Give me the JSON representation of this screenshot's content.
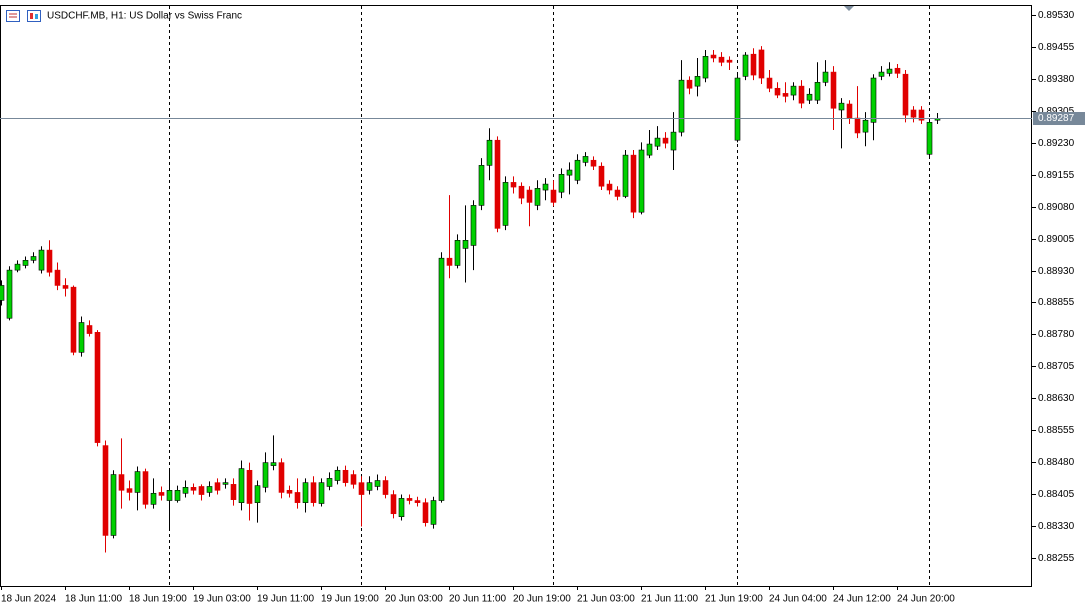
{
  "chart_data": {
    "type": "candlestick",
    "title": "USDCHF.MB, H1:  US Dollar vs Swiss Franc",
    "categories": [
      "18 Jun 2024",
      null,
      null,
      null,
      null,
      null,
      null,
      null,
      "18 Jun 11:00",
      null,
      null,
      null,
      null,
      null,
      null,
      null,
      "18 Jun 19:00",
      null,
      null,
      null,
      null,
      null,
      null,
      null,
      "19 Jun 03:00",
      null,
      null,
      null,
      null,
      null,
      null,
      null,
      "19 Jun 11:00",
      null,
      null,
      null,
      null,
      null,
      null,
      null,
      "19 Jun 19:00",
      null,
      null,
      null,
      null,
      null,
      null,
      null,
      "20 Jun 03:00",
      null,
      null,
      null,
      null,
      null,
      null,
      null,
      "20 Jun 11:00",
      null,
      null,
      null,
      null,
      null,
      null,
      null,
      "20 Jun 19:00",
      null,
      null,
      null,
      null,
      null,
      null,
      null,
      "21 Jun 03:00",
      null,
      null,
      null,
      null,
      null,
      null,
      null,
      "21 Jun 11:00",
      null,
      null,
      null,
      null,
      null,
      null,
      null,
      "21 Jun 19:00",
      null,
      null,
      null,
      null,
      null,
      null,
      null,
      "24 Jun 04:00",
      null,
      null,
      null,
      null,
      null,
      null,
      null,
      "24 Jun 12:00",
      null,
      null,
      null,
      null,
      null,
      null,
      null,
      "24 Jun 20:00",
      null,
      null,
      null,
      null,
      null
    ],
    "open": [
      0.8886,
      0.88818,
      0.88931,
      0.88942,
      0.88954,
      0.88931,
      0.88978,
      0.88931,
      0.88895,
      0.88891,
      0.88738,
      0.88801,
      0.88785,
      0.88519,
      0.88308,
      0.88451,
      0.88418,
      0.88409,
      0.88458,
      0.88381,
      0.88409,
      0.8839,
      0.8839,
      0.88407,
      0.88421,
      0.88423,
      0.88409,
      0.88432,
      0.88428,
      0.88428,
      0.88385,
      0.88461,
      0.88385,
      0.88421,
      0.88472,
      0.88479,
      0.88414,
      0.88409,
      0.88385,
      0.88432,
      0.88383,
      0.88423,
      0.88437,
      0.88461,
      0.88451,
      0.88432,
      0.88414,
      0.88423,
      0.88437,
      0.88404,
      0.88352,
      0.88395,
      0.8839,
      0.88385,
      0.88334,
      0.8839,
      0.88959,
      0.88942,
      0.88982,
      0.88989,
      0.89083,
      0.89177,
      0.89236,
      0.89036,
      0.89137,
      0.89128,
      0.89119,
      0.89083,
      0.89119,
      0.89119,
      0.89114,
      0.89154,
      0.89142,
      0.89184,
      0.89189,
      0.89175,
      0.89133,
      0.89119,
      0.89104,
      0.89201,
      0.89067,
      0.89201,
      0.89222,
      0.89241,
      0.89213,
      0.89255,
      0.89377,
      0.89363,
      0.89382,
      0.89436,
      0.89431,
      0.89424,
      0.89236,
      0.89386,
      0.89438,
      0.89448,
      0.89382,
      0.89358,
      0.89346,
      0.89342,
      0.89363,
      0.8933,
      0.8933,
      0.89372,
      0.89396,
      0.89307,
      0.89321,
      0.89288,
      0.89255,
      0.89278,
      0.89386,
      0.89393,
      0.89405,
      0.89391,
      0.89307,
      0.89307,
      0.89203,
      0.89283
    ],
    "high": [
      0.88907,
      0.8894,
      0.88954,
      0.88963,
      0.88973,
      0.88987,
      0.89001,
      0.88949,
      0.88912,
      0.88895,
      0.88822,
      0.88813,
      0.8879,
      0.88531,
      0.88461,
      0.88536,
      0.88437,
      0.8847,
      0.88465,
      0.88442,
      0.88423,
      0.88461,
      0.88425,
      0.88437,
      0.8843,
      0.88428,
      0.88435,
      0.88442,
      0.88442,
      0.88442,
      0.88484,
      0.88479,
      0.88437,
      0.88503,
      0.88543,
      0.88489,
      0.88425,
      0.88442,
      0.88442,
      0.88447,
      0.88442,
      0.88456,
      0.8847,
      0.88472,
      0.88461,
      0.88447,
      0.88447,
      0.88451,
      0.88447,
      0.88414,
      0.88404,
      0.88404,
      0.88399,
      0.88395,
      0.88399,
      0.88973,
      0.89107,
      0.89015,
      0.89083,
      0.89095,
      0.89194,
      0.89264,
      0.89245,
      0.89151,
      0.89151,
      0.89137,
      0.89128,
      0.89142,
      0.89147,
      0.89142,
      0.8917,
      0.89184,
      0.89203,
      0.89208,
      0.89198,
      0.89184,
      0.89142,
      0.89128,
      0.89213,
      0.89213,
      0.89231,
      0.8926,
      0.89269,
      0.89255,
      0.89302,
      0.89424,
      0.89386,
      0.89429,
      0.89448,
      0.89448,
      0.89443,
      0.89433,
      0.89391,
      0.89443,
      0.89452,
      0.89457,
      0.89401,
      0.89372,
      0.89372,
      0.89372,
      0.89377,
      0.89358,
      0.89419,
      0.89424,
      0.8941,
      0.89335,
      0.8933,
      0.89363,
      0.89302,
      0.89391,
      0.8941,
      0.89419,
      0.89415,
      0.89401,
      0.89316,
      0.89316,
      0.89288,
      0.893
    ],
    "low": [
      0.88848,
      0.88813,
      0.88926,
      0.88935,
      0.88947,
      0.88923,
      0.88916,
      0.88884,
      0.88869,
      0.88731,
      0.88728,
      0.88775,
      0.88517,
      0.88268,
      0.88301,
      0.88371,
      0.8839,
      0.88367,
      0.88371,
      0.88371,
      0.8839,
      0.88324,
      0.88385,
      0.88397,
      0.88404,
      0.8839,
      0.88399,
      0.88404,
      0.88418,
      0.88378,
      0.88367,
      0.88343,
      0.88338,
      0.88409,
      0.88461,
      0.88395,
      0.88397,
      0.88371,
      0.88362,
      0.88376,
      0.88376,
      0.88414,
      0.88428,
      0.88423,
      0.88418,
      0.88329,
      0.88404,
      0.88414,
      0.88395,
      0.88348,
      0.88343,
      0.88381,
      0.88376,
      0.88329,
      0.88324,
      0.88385,
      0.88912,
      0.88935,
      0.88902,
      0.88931,
      0.89072,
      0.89142,
      0.8902,
      0.89025,
      0.89111,
      0.89086,
      0.89034,
      0.89072,
      0.89095,
      0.89081,
      0.891,
      0.89109,
      0.89133,
      0.89175,
      0.89166,
      0.89119,
      0.89109,
      0.89095,
      0.891,
      0.89053,
      0.89062,
      0.89194,
      0.89213,
      0.89217,
      0.89166,
      0.89245,
      0.89344,
      0.89339,
      0.89372,
      0.89419,
      0.8941,
      0.89401,
      0.89231,
      0.89377,
      0.89377,
      0.89368,
      0.89349,
      0.89335,
      0.89325,
      0.8933,
      0.89311,
      0.89321,
      0.89321,
      0.89363,
      0.8926,
      0.89217,
      0.89274,
      0.89241,
      0.89222,
      0.89236,
      0.89377,
      0.89386,
      0.89382,
      0.89278,
      0.89278,
      0.89274,
      0.89198,
      0.89274
    ],
    "close": [
      0.88895,
      0.88931,
      0.88945,
      0.88954,
      0.88963,
      0.88978,
      0.88926,
      0.88895,
      0.88888,
      0.88738,
      0.88808,
      0.88782,
      0.88526,
      0.88308,
      0.88451,
      0.88414,
      0.88409,
      0.88458,
      0.88381,
      0.88407,
      0.88402,
      0.88414,
      0.88414,
      0.88421,
      0.88414,
      0.88404,
      0.88423,
      0.88414,
      0.88432,
      0.88392,
      0.88465,
      0.88383,
      0.88425,
      0.88479,
      0.88479,
      0.88409,
      0.88407,
      0.88385,
      0.88432,
      0.88385,
      0.88432,
      0.88442,
      0.88461,
      0.88432,
      0.88428,
      0.88404,
      0.88432,
      0.88437,
      0.88404,
      0.88359,
      0.88395,
      0.8839,
      0.88385,
      0.88338,
      0.8839,
      0.88959,
      0.88942,
      0.89001,
      0.89001,
      0.89083,
      0.89177,
      0.89236,
      0.89029,
      0.89137,
      0.89126,
      0.891,
      0.8909,
      0.89123,
      0.89133,
      0.8909,
      0.89156,
      0.89166,
      0.89189,
      0.89198,
      0.89175,
      0.89128,
      0.89119,
      0.89104,
      0.89201,
      0.89067,
      0.89213,
      0.89227,
      0.89241,
      0.89229,
      0.89255,
      0.89377,
      0.89358,
      0.89386,
      0.89433,
      0.89429,
      0.89419,
      0.89419,
      0.89382,
      0.89436,
      0.89389,
      0.89382,
      0.89358,
      0.89342,
      0.89339,
      0.89363,
      0.89323,
      0.89344,
      0.89372,
      0.89396,
      0.89311,
      0.89323,
      0.89288,
      0.89253,
      0.89283,
      0.89382,
      0.89396,
      0.89403,
      0.89393,
      0.89295,
      0.8929,
      0.89283,
      0.89278,
      0.89287
    ],
    "up_color": "#00d000",
    "down_color": "#e00000",
    "ylim": [
      0.8819,
      0.8955
    ],
    "yticks": [
      {
        "value": 0.8953,
        "label": "0.89530"
      },
      0.89455,
      {
        "value": 0.8938,
        "label": "0.89380"
      },
      0.89305,
      {
        "value": 0.8923,
        "label": "0.89230"
      },
      0.89155,
      {
        "value": 0.8908,
        "label": "0.89080"
      },
      0.89005,
      {
        "value": 0.8893,
        "label": "0.88930"
      },
      0.88855,
      {
        "value": 0.8878,
        "label": "0.88780"
      },
      0.88705,
      {
        "value": 0.8863,
        "label": "0.88630"
      },
      0.88555,
      {
        "value": 0.8848,
        "label": "0.88480"
      },
      0.88405,
      {
        "value": 0.8833,
        "label": "0.88330"
      },
      0.88255
    ],
    "current_price": 0.89287
  }
}
